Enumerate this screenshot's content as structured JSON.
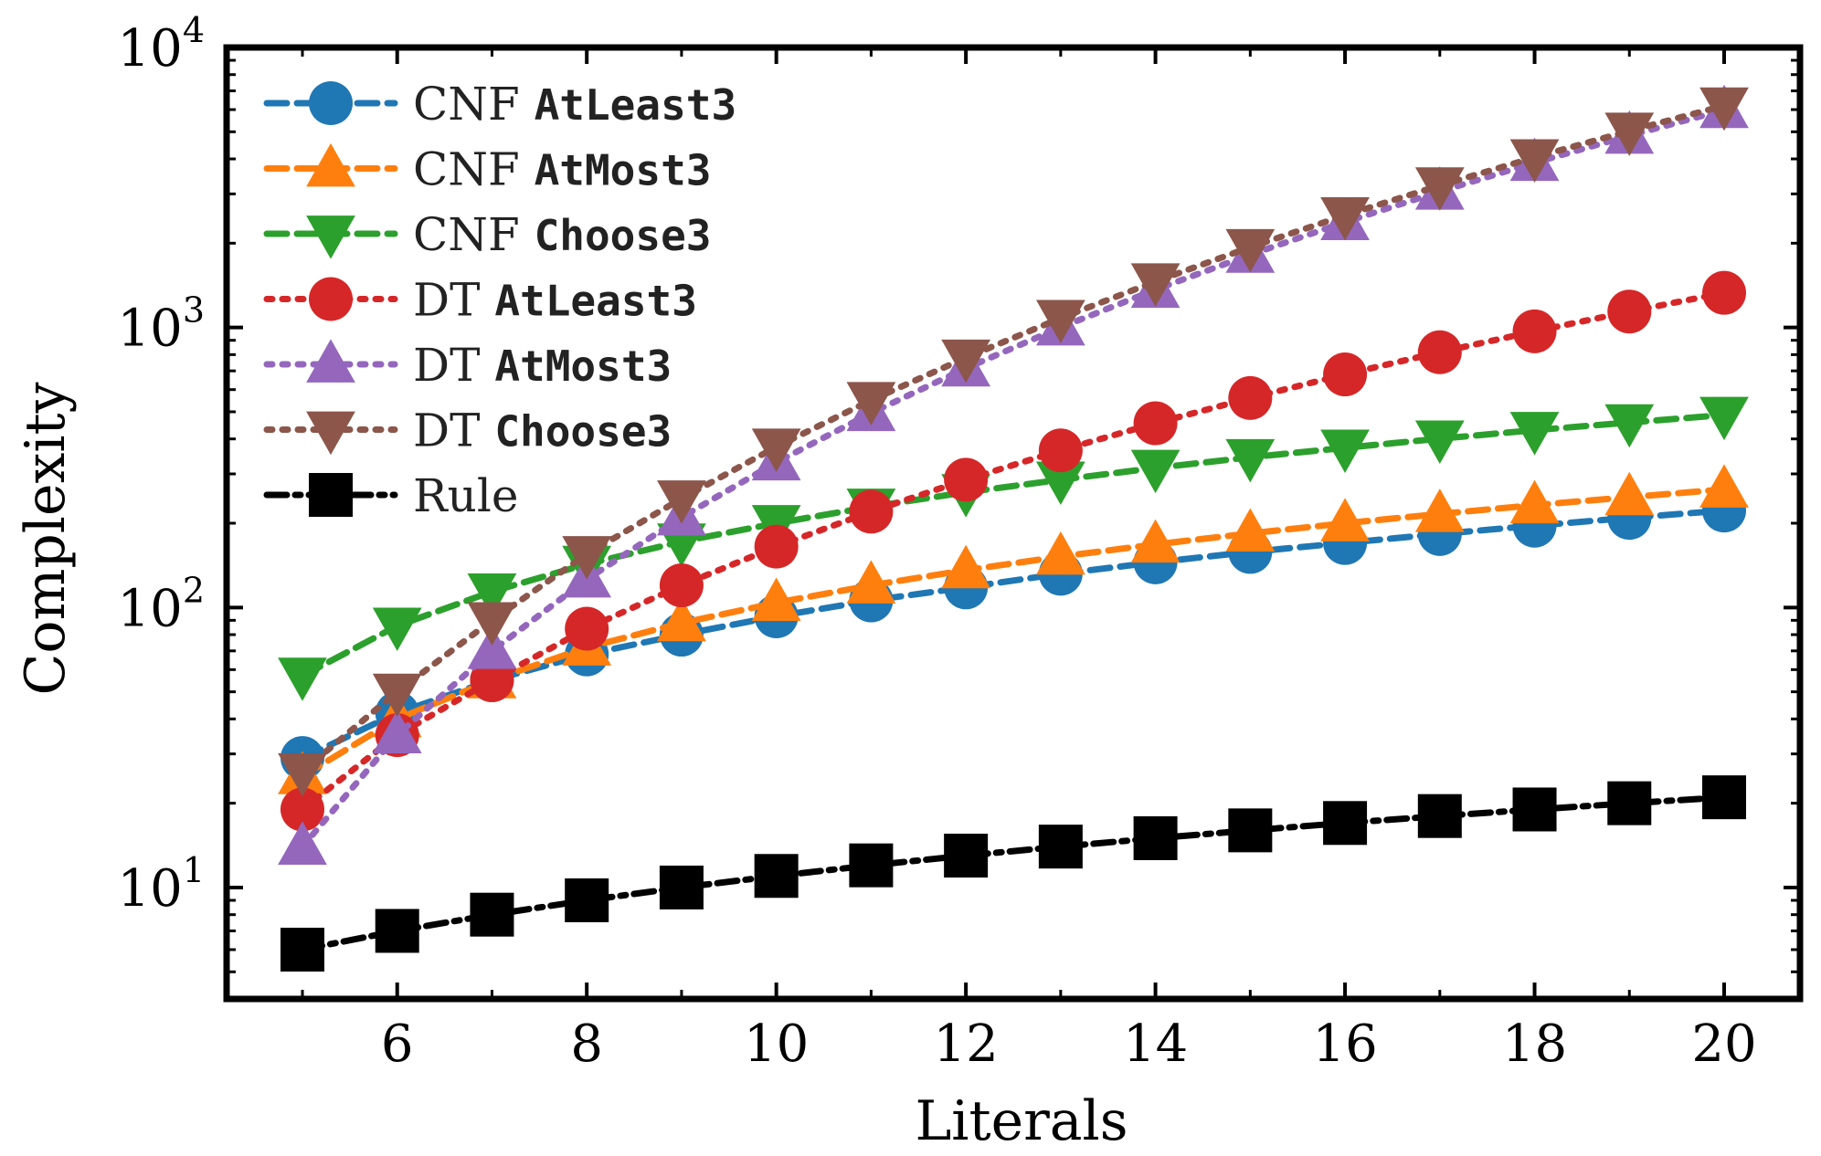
{
  "chart_data": {
    "type": "line",
    "xlabel": "Literals",
    "ylabel": "Complexity",
    "xlim": [
      4.2,
      20.8
    ],
    "ylim": [
      4,
      10000
    ],
    "yscale": "log",
    "xticks": [
      6,
      8,
      10,
      12,
      14,
      16,
      18,
      20
    ],
    "xtick_labels": [
      "6",
      "8",
      "10",
      "12",
      "14",
      "16",
      "18",
      "20"
    ],
    "yticks": [
      10,
      100,
      1000,
      10000
    ],
    "ytick_labels": [
      {
        "base": "10",
        "exp": "1"
      },
      {
        "base": "10",
        "exp": "2"
      },
      {
        "base": "10",
        "exp": "3"
      },
      {
        "base": "10",
        "exp": "4"
      }
    ],
    "grid": false,
    "legend_position": "top-left",
    "x": [
      5,
      6,
      7,
      8,
      9,
      10,
      11,
      12,
      13,
      14,
      15,
      16,
      17,
      18,
      19,
      20
    ],
    "series": [
      {
        "name": "CNF AtLeast3",
        "label_prefix": "CNF ",
        "label_code": "AtLeast3",
        "color": "#1f77b4",
        "marker": "circle",
        "linestyle": "dash",
        "values": [
          29,
          42,
          55,
          68,
          80,
          93,
          106,
          118,
          132,
          145,
          158,
          170,
          183,
          196,
          209,
          222
        ]
      },
      {
        "name": "CNF AtMost3",
        "label_prefix": "CNF ",
        "label_code": "AtMost3",
        "color": "#ff7f0e",
        "marker": "triangle-up",
        "linestyle": "dash",
        "values": [
          25,
          40,
          55,
          72,
          88,
          104,
          120,
          136,
          152,
          168,
          184,
          200,
          216,
          232,
          248,
          264
        ]
      },
      {
        "name": "CNF Choose3",
        "label_prefix": "CNF ",
        "label_code": "Choose3",
        "color": "#2ca02c",
        "marker": "triangle-down",
        "linestyle": "dash",
        "values": [
          57,
          86,
          114,
          143,
          172,
          200,
          229,
          258,
          286,
          315,
          344,
          372,
          401,
          430,
          458,
          487
        ]
      },
      {
        "name": "DT AtLeast3",
        "label_prefix": "DT ",
        "label_code": "AtLeast3",
        "color": "#d62728",
        "marker": "circle",
        "linestyle": "dot",
        "values": [
          19,
          35,
          55,
          84,
          120,
          165,
          220,
          286,
          364,
          455,
          560,
          680,
          816,
          969,
          1140,
          1330
        ]
      },
      {
        "name": "DT AtMost3",
        "label_prefix": "DT ",
        "label_code": "AtMost3",
        "color": "#9467bd",
        "marker": "triangle-up",
        "linestyle": "dot",
        "values": [
          14,
          35,
          70,
          126,
          210,
          330,
          495,
          715,
          1001,
          1365,
          1820,
          2380,
          3060,
          3876,
          4845,
          5985
        ]
      },
      {
        "name": "DT Choose3",
        "label_prefix": "DT ",
        "label_code": "Choose3",
        "color": "#8c564b",
        "marker": "triangle-down",
        "linestyle": "dot",
        "values": [
          26,
          50,
          90,
          155,
          245,
          375,
          550,
          780,
          1080,
          1460,
          1935,
          2515,
          3215,
          4050,
          5040,
          6200
        ]
      },
      {
        "name": "Rule",
        "label_prefix": "Rule",
        "label_code": "",
        "color": "#000000",
        "marker": "square",
        "linestyle": "dashdot",
        "values": [
          6,
          7,
          8,
          9,
          10,
          11,
          12,
          13,
          14,
          15,
          16,
          17,
          18,
          19,
          20,
          21
        ]
      }
    ]
  }
}
